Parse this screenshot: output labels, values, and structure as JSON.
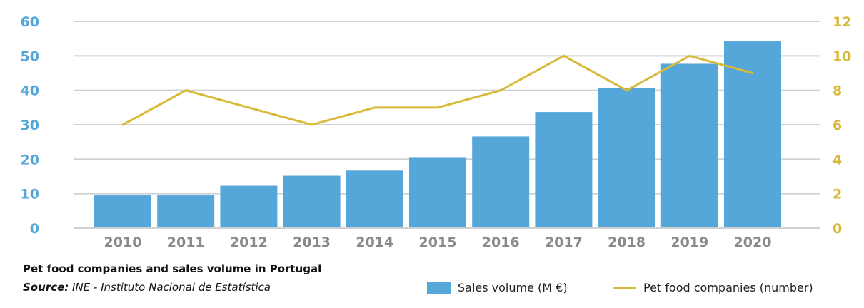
{
  "chart_data": {
    "type": "bar+line",
    "categories": [
      "2010",
      "2011",
      "2012",
      "2013",
      "2014",
      "2015",
      "2016",
      "2017",
      "2018",
      "2019",
      "2020"
    ],
    "series": [
      {
        "name": "Sales volume (M €)",
        "type": "bar",
        "axis": "left",
        "color": "#56a7d9",
        "values": [
          9.5,
          9.5,
          12.3,
          15.2,
          16.7,
          20.6,
          26.6,
          33.7,
          40.7,
          47.7,
          54.2
        ]
      },
      {
        "name": "Pet food companies (number)",
        "type": "line",
        "axis": "right",
        "color": "#d9b93a",
        "values": [
          6,
          8,
          7,
          6,
          7,
          7,
          8,
          10,
          8,
          10,
          9
        ]
      }
    ],
    "left_axis": {
      "ylim": [
        0,
        60
      ],
      "ticks": [
        "0",
        "10",
        "20",
        "30",
        "40",
        "50",
        "60"
      ],
      "color": "#56a7d9"
    },
    "right_axis": {
      "ylim": [
        0,
        12
      ],
      "ticks": [
        "0",
        "2",
        "4",
        "6",
        "8",
        "10",
        "12"
      ],
      "color": "#d9b93a"
    },
    "grid": true,
    "legend": "bottom-right"
  },
  "caption": {
    "title": "Pet food companies and sales volume in Portugal",
    "source_label": "Source:",
    "source_text": " INE - Instituto Nacional de Estatística"
  }
}
